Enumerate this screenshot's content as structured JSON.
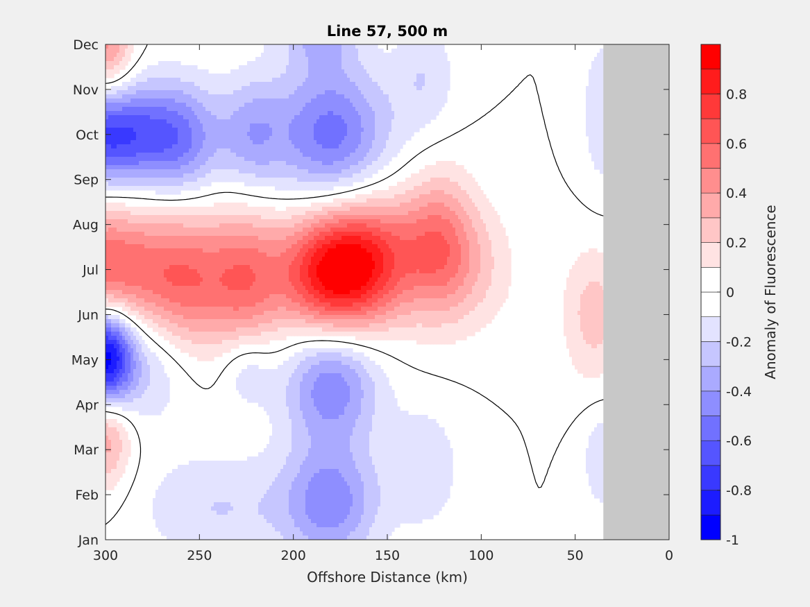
{
  "chart_data": {
    "type": "heatmap",
    "title": "Line 57, 500 m",
    "xlabel": "Offshore Distance (km)",
    "ylabel": "",
    "xlim": [
      300,
      0
    ],
    "x_reversed": true,
    "x_ticks": [
      300,
      250,
      200,
      150,
      100,
      50,
      0
    ],
    "y_ticks": [
      "Jan",
      "Feb",
      "Mar",
      "Apr",
      "May",
      "Jun",
      "Jul",
      "Aug",
      "Sep",
      "Oct",
      "Nov",
      "Dec"
    ],
    "ylim": [
      "Jan",
      "Dec"
    ],
    "no_data_region_km": [
      0,
      35
    ],
    "zero_contour": true,
    "colorbar": {
      "label": "Anomaly of Fluorescence",
      "range": [
        -1,
        1
      ],
      "levels": [
        -1,
        -0.9,
        -0.8,
        -0.7,
        -0.6,
        -0.5,
        -0.4,
        -0.3,
        -0.2,
        -0.1,
        0,
        0.1,
        0.2,
        0.3,
        0.4,
        0.5,
        0.6,
        0.7,
        0.8,
        0.9,
        1
      ],
      "tick_labels": [
        "-1",
        "-0.8",
        "-0.6",
        "-0.4",
        "-0.2",
        "0",
        "0.2",
        "0.4",
        "0.6",
        "0.8"
      ],
      "colors": [
        "#0000ff",
        "#1c1cff",
        "#3939ff",
        "#5555ff",
        "#7171ff",
        "#8e8eff",
        "#aaaaff",
        "#c6c6ff",
        "#e3e3ff",
        "#ffffff",
        "#ffffff",
        "#ffe3e3",
        "#ffc6c6",
        "#ffaaaa",
        "#ff8e8e",
        "#ff7171",
        "#ff5555",
        "#ff3939",
        "#ff1c1c",
        "#ff0000"
      ]
    },
    "anomaly_features": [
      {
        "x_km": 300,
        "month": 11.0,
        "value": 0.45,
        "sx_km": 10,
        "sy_month": 0.9
      },
      {
        "x_km": 300,
        "month": 2.5,
        "value": 0.45,
        "sx_km": 10,
        "sy_month": 0.9
      },
      {
        "x_km": 300,
        "month": 6.0,
        "value": 0.6,
        "sx_km": 20,
        "sy_month": 1.0
      },
      {
        "x_km": 258,
        "month": 5.75,
        "value": 0.55,
        "sx_km": 18,
        "sy_month": 1.1
      },
      {
        "x_km": 225,
        "month": 5.8,
        "value": 0.45,
        "sx_km": 14,
        "sy_month": 1.1
      },
      {
        "x_km": 180,
        "month": 5.9,
        "value": 0.9,
        "sx_km": 20,
        "sy_month": 1.0
      },
      {
        "x_km": 155,
        "month": 6.3,
        "value": 0.45,
        "sx_km": 18,
        "sy_month": 1.0
      },
      {
        "x_km": 122,
        "month": 6.5,
        "value": 0.5,
        "sx_km": 14,
        "sy_month": 1.1
      },
      {
        "x_km": 100,
        "month": 6.0,
        "value": 0.15,
        "sx_km": 16,
        "sy_month": 1.0
      },
      {
        "x_km": 40,
        "month": 5.0,
        "value": 0.25,
        "sx_km": 12,
        "sy_month": 1.1
      },
      {
        "x_km": 300,
        "month": 9.0,
        "value": -0.75,
        "sx_km": 22,
        "sy_month": 0.8
      },
      {
        "x_km": 260,
        "month": 8.9,
        "value": -0.45,
        "sx_km": 16,
        "sy_month": 0.9
      },
      {
        "x_km": 222,
        "month": 9.0,
        "value": -0.3,
        "sx_km": 12,
        "sy_month": 0.9
      },
      {
        "x_km": 180,
        "month": 9.0,
        "value": -0.55,
        "sx_km": 22,
        "sy_month": 1.1
      },
      {
        "x_km": 185,
        "month": 11.3,
        "value": -0.3,
        "sx_km": 14,
        "sy_month": 0.6
      },
      {
        "x_km": 230,
        "month": 11.7,
        "value": -0.15,
        "sx_km": 20,
        "sy_month": 0.4
      },
      {
        "x_km": 300,
        "month": 4.0,
        "value": -1.0,
        "sx_km": 10,
        "sy_month": 0.8
      },
      {
        "x_km": 280,
        "month": 4.0,
        "value": -0.25,
        "sx_km": 18,
        "sy_month": 1.0
      },
      {
        "x_km": 180,
        "month": 3.5,
        "value": -0.5,
        "sx_km": 18,
        "sy_month": 1.0
      },
      {
        "x_km": 225,
        "month": 3.8,
        "value": -0.2,
        "sx_km": 10,
        "sy_month": 0.6
      },
      {
        "x_km": 180,
        "month": 0.8,
        "value": -0.45,
        "sx_km": 18,
        "sy_month": 0.9
      },
      {
        "x_km": 240,
        "month": 0.7,
        "value": -0.2,
        "sx_km": 30,
        "sy_month": 0.9
      },
      {
        "x_km": 130,
        "month": 10.3,
        "value": -0.18,
        "sx_km": 12,
        "sy_month": 0.9
      },
      {
        "x_km": 130,
        "month": 1.6,
        "value": -0.18,
        "sx_km": 14,
        "sy_month": 1.0
      },
      {
        "x_km": 35,
        "month": 1.8,
        "value": -0.2,
        "sx_km": 8,
        "sy_month": 0.8
      },
      {
        "x_km": 35,
        "month": 9.5,
        "value": -0.2,
        "sx_km": 8,
        "sy_month": 1.2
      }
    ]
  }
}
